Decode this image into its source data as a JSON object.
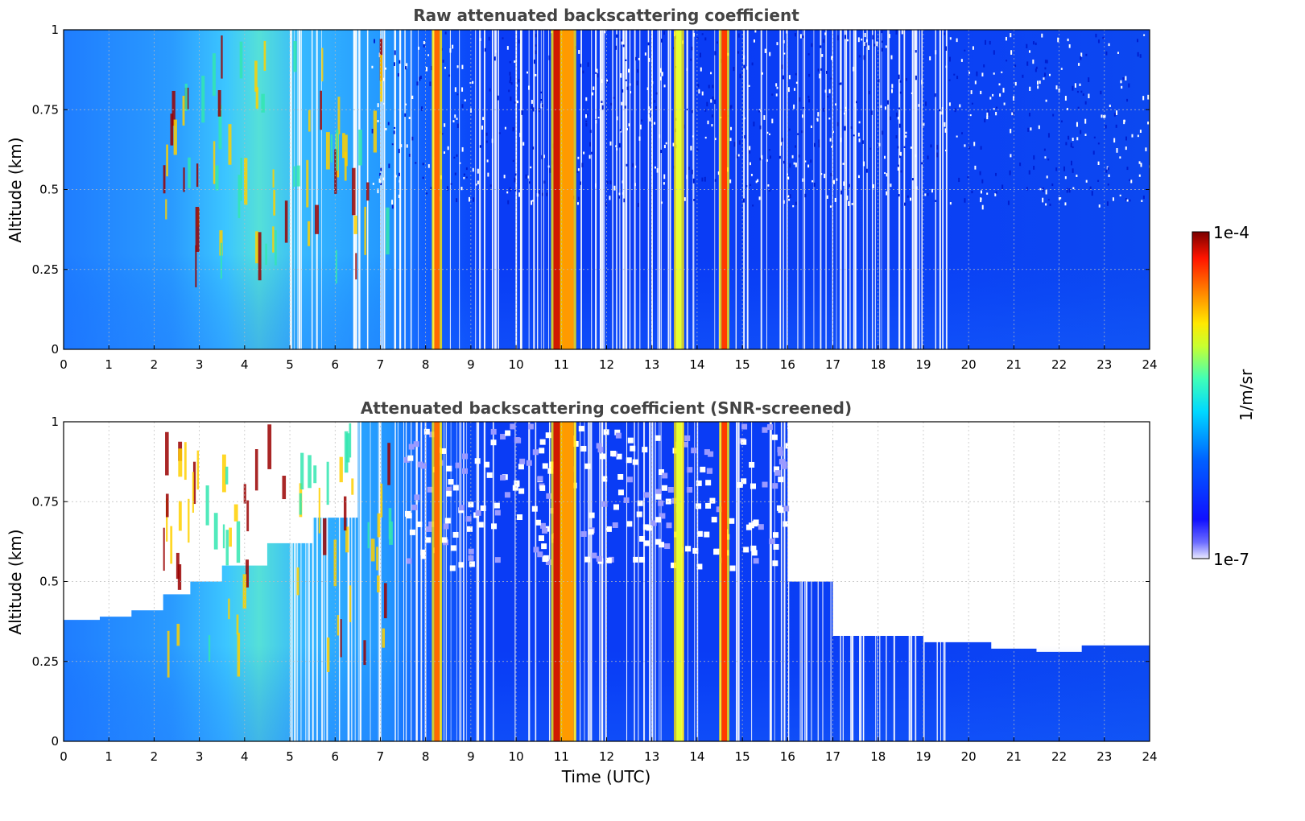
{
  "chart_data": [
    {
      "type": "heatmap",
      "title": "Raw attenuated backscattering coefficient",
      "xlabel": "",
      "ylabel": "Altitude (km)",
      "xlim": [
        0,
        24
      ],
      "ylim": [
        0,
        1
      ],
      "xticks": [
        "0",
        "1",
        "2",
        "3",
        "4",
        "5",
        "6",
        "7",
        "8",
        "9",
        "10",
        "11",
        "12",
        "13",
        "14",
        "15",
        "16",
        "17",
        "18",
        "19",
        "20",
        "21",
        "22",
        "23",
        "24"
      ],
      "yticks": [
        "0",
        "0.25",
        "0.5",
        "0.75",
        "1"
      ],
      "grid": true,
      "screened": false
    },
    {
      "type": "heatmap",
      "title": "Attenuated backscattering coefficient (SNR-screened)",
      "xlabel": "Time (UTC)",
      "ylabel": "Altitude (km)",
      "xlim": [
        0,
        24
      ],
      "ylim": [
        0,
        1
      ],
      "xticks": [
        "0",
        "1",
        "2",
        "3",
        "4",
        "5",
        "6",
        "7",
        "8",
        "9",
        "10",
        "11",
        "12",
        "13",
        "14",
        "15",
        "16",
        "17",
        "18",
        "19",
        "20",
        "21",
        "22",
        "23",
        "24"
      ],
      "yticks": [
        "0",
        "0.25",
        "0.5",
        "0.75",
        "1"
      ],
      "grid": true,
      "screened": true,
      "screen_top_km": [
        [
          0,
          0.38
        ],
        [
          0.8,
          0.39
        ],
        [
          1.5,
          0.41
        ],
        [
          2.2,
          0.46
        ],
        [
          2.8,
          0.5
        ],
        [
          3.5,
          0.55
        ],
        [
          4.5,
          0.62
        ],
        [
          5.5,
          0.7
        ],
        [
          6.5,
          1.0
        ],
        [
          15.5,
          1.0
        ],
        [
          16.0,
          0.5
        ],
        [
          17.0,
          0.33
        ],
        [
          18.0,
          0.33
        ],
        [
          19.0,
          0.31
        ],
        [
          20.5,
          0.29
        ],
        [
          21.5,
          0.28
        ],
        [
          22.5,
          0.3
        ],
        [
          24,
          0.3
        ]
      ]
    }
  ],
  "colorbar": {
    "max_label": "1e-4",
    "min_label": "1e-7",
    "units": "1/m/sr",
    "scale": "log",
    "colormap": "jet"
  },
  "features": {
    "vertical_columns_utc": [
      8.25,
      10.95,
      11.15,
      13.6,
      14.6
    ],
    "column_colors": [
      "#ff6a00",
      "#d01a00",
      "#ff9a00",
      "#e6ff30",
      "#ff3a00"
    ]
  }
}
